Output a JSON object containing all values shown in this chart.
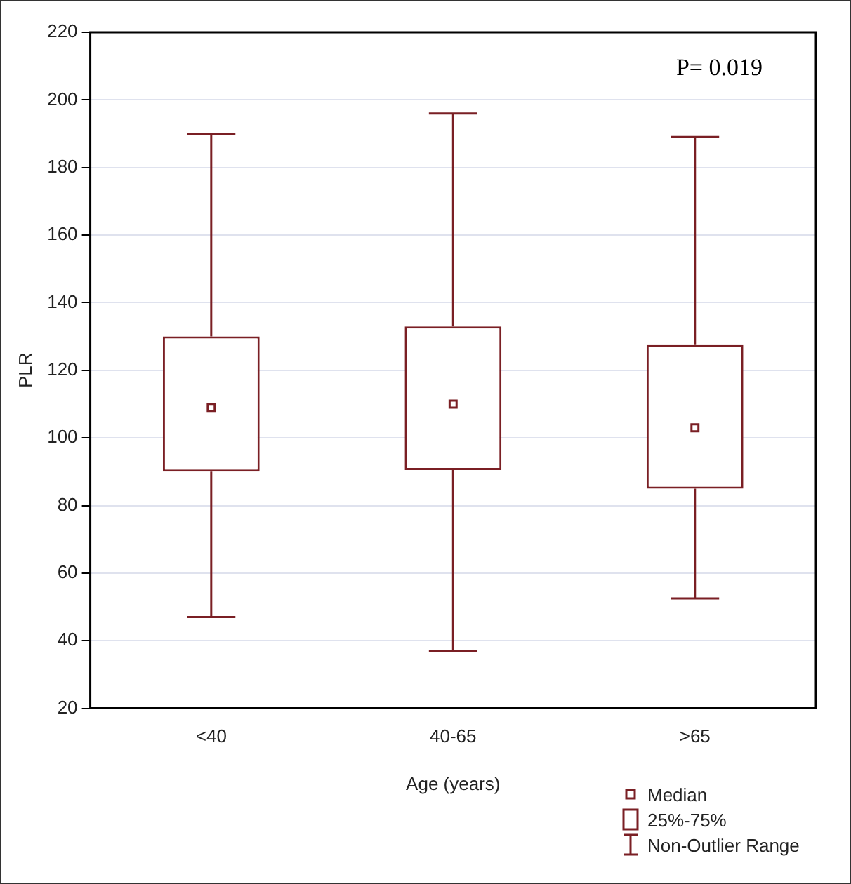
{
  "chart_data": {
    "type": "box",
    "xlabel": "Age (years)",
    "ylabel": "PLR",
    "categories": [
      "<40",
      "40-65",
      ">65"
    ],
    "series": [
      {
        "color": "#7a1f24",
        "boxes": [
          {
            "low": 47,
            "q1": 90,
            "median": 109,
            "q3": 130,
            "high": 190
          },
          {
            "low": 37,
            "q1": 90.5,
            "median": 110,
            "q3": 133,
            "high": 196
          },
          {
            "low": 52.5,
            "q1": 85,
            "median": 103,
            "q3": 127.5,
            "high": 189
          }
        ]
      }
    ],
    "ylim": [
      20,
      220
    ],
    "yticks": [
      20,
      40,
      60,
      80,
      100,
      120,
      140,
      160,
      180,
      200,
      220
    ],
    "grid": "y",
    "annotations": [
      "P= 0.019",
      "Median",
      "25%-75%",
      "Non-Outlier Range"
    ]
  }
}
